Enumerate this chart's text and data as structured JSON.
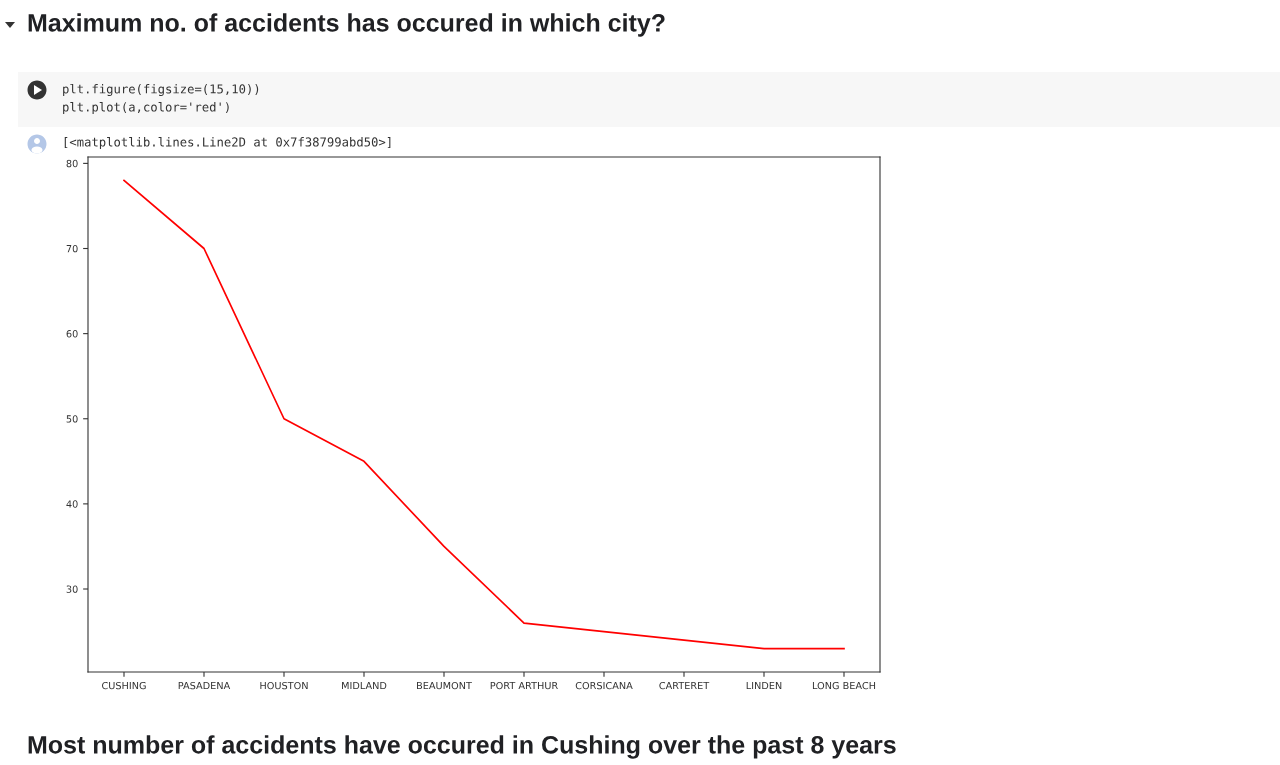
{
  "chart_data": {
    "type": "line",
    "title": "Maximum no. of accidents has occured in which city?",
    "annotations": [
      "plt.figure(figsize=(15,10))",
      "plt.plot(a,color='red')",
      "[<matplotlib.lines.Line2D at 0x7f38799abd50>]",
      "Most number of accidents have occured in Cushing over the past 8 years"
    ],
    "categories": [
      "CUSHING",
      "PASADENA",
      "HOUSTON",
      "MIDLAND",
      "BEAUMONT",
      "PORT ARTHUR",
      "CORSICANA",
      "CARTERET",
      "LINDEN",
      "LONG BEACH"
    ],
    "series": [
      {
        "color": "#ff0000",
        "values": [
          78,
          70,
          50,
          45,
          35,
          26,
          25,
          24,
          23,
          23
        ]
      }
    ],
    "ylim": [
      20.25,
      80.75
    ],
    "yticks": [
      30,
      40,
      50,
      60,
      70,
      80
    ],
    "marker": "none",
    "line_style": "solid"
  }
}
